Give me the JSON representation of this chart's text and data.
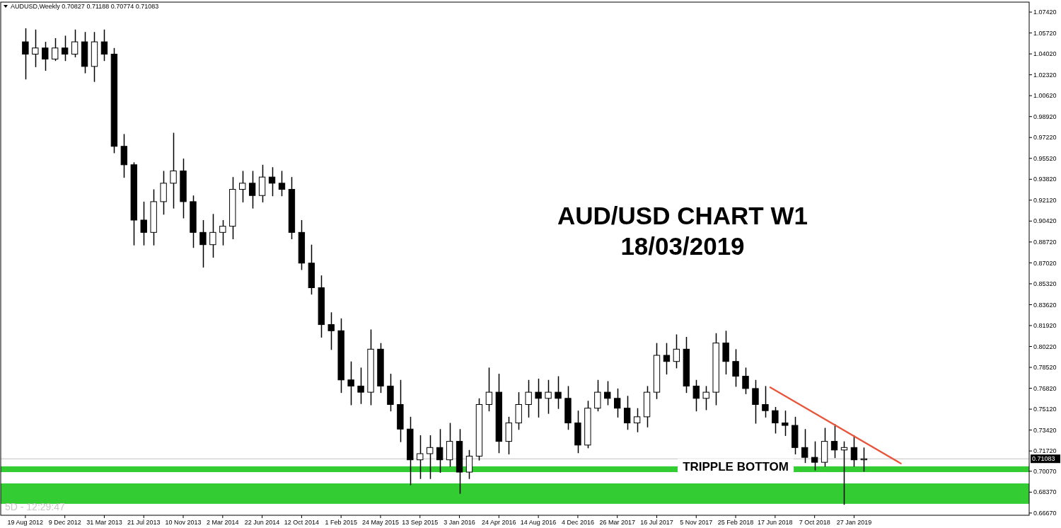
{
  "chart_data": {
    "type": "candlestick",
    "title": "AUD/USD CHART W1",
    "subtitle": "18/03/2019",
    "annotations": [
      "AUDUSD,Weekly  0.70827 0.71188 0.70774 0.71083",
      "5D - 12:29:47",
      {
        "text": "TRIPPLE BOTTOM",
        "x": "2018-02-25",
        "y": 0.7045
      }
    ],
    "x": [
      "2012-08-19",
      "2012-09-16",
      "2012-10-14",
      "2012-11-11",
      "2012-12-09",
      "2013-01-06",
      "2013-02-03",
      "2013-03-03",
      "2013-03-31",
      "2013-04-28",
      "2013-05-26",
      "2013-06-23",
      "2013-07-21",
      "2013-08-18",
      "2013-09-15",
      "2013-10-13",
      "2013-11-10",
      "2013-12-08",
      "2014-01-05",
      "2014-02-02",
      "2014-03-02",
      "2014-03-30",
      "2014-04-27",
      "2014-05-25",
      "2014-06-22",
      "2014-07-20",
      "2014-08-17",
      "2014-09-14",
      "2014-10-12",
      "2014-11-09",
      "2014-12-07",
      "2015-01-04",
      "2015-02-01",
      "2015-03-01",
      "2015-03-29",
      "2015-04-26",
      "2015-05-24",
      "2015-06-21",
      "2015-07-19",
      "2015-08-16",
      "2015-09-13",
      "2015-10-11",
      "2015-11-08",
      "2015-12-06",
      "2016-01-03",
      "2016-01-31",
      "2016-02-28",
      "2016-03-27",
      "2016-04-24",
      "2016-05-22",
      "2016-06-19",
      "2016-07-17",
      "2016-08-14",
      "2016-09-11",
      "2016-10-09",
      "2016-11-06",
      "2016-12-04",
      "2017-01-01",
      "2017-01-29",
      "2017-02-26",
      "2017-03-26",
      "2017-04-23",
      "2017-05-21",
      "2017-06-18",
      "2017-07-16",
      "2017-08-13",
      "2017-09-10",
      "2017-10-08",
      "2017-11-05",
      "2017-12-03",
      "2017-12-31",
      "2018-01-28",
      "2018-02-25",
      "2018-03-25",
      "2018-04-22",
      "2018-05-20",
      "2018-06-17",
      "2018-07-15",
      "2018-08-12",
      "2018-09-09",
      "2018-10-07",
      "2018-11-04",
      "2018-12-02",
      "2018-12-30",
      "2019-01-27",
      "2019-02-24"
    ],
    "ohlc": [
      [
        1.05,
        1.061,
        1.02,
        1.04
      ],
      [
        1.04,
        1.06,
        1.03,
        1.045
      ],
      [
        1.045,
        1.05,
        1.027,
        1.036
      ],
      [
        1.036,
        1.053,
        1.035,
        1.045
      ],
      [
        1.045,
        1.055,
        1.035,
        1.04
      ],
      [
        1.04,
        1.06,
        1.038,
        1.05
      ],
      [
        1.05,
        1.058,
        1.025,
        1.03
      ],
      [
        1.03,
        1.058,
        1.018,
        1.05
      ],
      [
        1.05,
        1.06,
        1.035,
        1.04
      ],
      [
        1.04,
        1.045,
        0.96,
        0.965
      ],
      [
        0.965,
        0.975,
        0.94,
        0.95
      ],
      [
        0.95,
        0.952,
        0.885,
        0.905
      ],
      [
        0.905,
        0.92,
        0.885,
        0.895
      ],
      [
        0.895,
        0.93,
        0.885,
        0.92
      ],
      [
        0.92,
        0.945,
        0.91,
        0.935
      ],
      [
        0.935,
        0.976,
        0.915,
        0.945
      ],
      [
        0.945,
        0.955,
        0.907,
        0.92
      ],
      [
        0.92,
        0.925,
        0.883,
        0.895
      ],
      [
        0.895,
        0.905,
        0.867,
        0.885
      ],
      [
        0.885,
        0.91,
        0.875,
        0.895
      ],
      [
        0.895,
        0.905,
        0.885,
        0.9
      ],
      [
        0.9,
        0.94,
        0.89,
        0.93
      ],
      [
        0.93,
        0.945,
        0.92,
        0.935
      ],
      [
        0.935,
        0.945,
        0.915,
        0.925
      ],
      [
        0.925,
        0.95,
        0.92,
        0.94
      ],
      [
        0.94,
        0.948,
        0.925,
        0.935
      ],
      [
        0.935,
        0.945,
        0.925,
        0.93
      ],
      [
        0.93,
        0.94,
        0.89,
        0.895
      ],
      [
        0.895,
        0.905,
        0.865,
        0.87
      ],
      [
        0.87,
        0.885,
        0.845,
        0.85
      ],
      [
        0.85,
        0.86,
        0.81,
        0.82
      ],
      [
        0.82,
        0.83,
        0.8,
        0.815
      ],
      [
        0.815,
        0.825,
        0.765,
        0.775
      ],
      [
        0.775,
        0.79,
        0.755,
        0.77
      ],
      [
        0.77,
        0.785,
        0.756,
        0.765
      ],
      [
        0.765,
        0.816,
        0.755,
        0.8
      ],
      [
        0.8,
        0.805,
        0.765,
        0.77
      ],
      [
        0.77,
        0.78,
        0.75,
        0.755
      ],
      [
        0.755,
        0.775,
        0.725,
        0.735
      ],
      [
        0.735,
        0.745,
        0.69,
        0.71
      ],
      [
        0.71,
        0.73,
        0.695,
        0.715
      ],
      [
        0.715,
        0.73,
        0.695,
        0.72
      ],
      [
        0.72,
        0.735,
        0.7,
        0.71
      ],
      [
        0.71,
        0.74,
        0.705,
        0.725
      ],
      [
        0.725,
        0.735,
        0.683,
        0.7
      ],
      [
        0.7,
        0.718,
        0.695,
        0.713
      ],
      [
        0.713,
        0.76,
        0.71,
        0.755
      ],
      [
        0.755,
        0.785,
        0.75,
        0.765
      ],
      [
        0.765,
        0.78,
        0.716,
        0.725
      ],
      [
        0.725,
        0.745,
        0.715,
        0.74
      ],
      [
        0.74,
        0.765,
        0.735,
        0.755
      ],
      [
        0.755,
        0.775,
        0.745,
        0.765
      ],
      [
        0.765,
        0.776,
        0.745,
        0.76
      ],
      [
        0.76,
        0.775,
        0.748,
        0.765
      ],
      [
        0.765,
        0.778,
        0.752,
        0.76
      ],
      [
        0.76,
        0.77,
        0.735,
        0.74
      ],
      [
        0.74,
        0.75,
        0.716,
        0.722
      ],
      [
        0.722,
        0.758,
        0.72,
        0.752
      ],
      [
        0.752,
        0.775,
        0.75,
        0.765
      ],
      [
        0.765,
        0.774,
        0.755,
        0.76
      ],
      [
        0.76,
        0.768,
        0.745,
        0.752
      ],
      [
        0.752,
        0.762,
        0.735,
        0.74
      ],
      [
        0.74,
        0.752,
        0.733,
        0.745
      ],
      [
        0.745,
        0.77,
        0.737,
        0.765
      ],
      [
        0.765,
        0.805,
        0.76,
        0.795
      ],
      [
        0.795,
        0.805,
        0.78,
        0.79
      ],
      [
        0.79,
        0.812,
        0.785,
        0.8
      ],
      [
        0.8,
        0.81,
        0.765,
        0.77
      ],
      [
        0.77,
        0.775,
        0.75,
        0.76
      ],
      [
        0.76,
        0.77,
        0.751,
        0.765
      ],
      [
        0.765,
        0.813,
        0.755,
        0.805
      ],
      [
        0.805,
        0.815,
        0.78,
        0.79
      ],
      [
        0.79,
        0.8,
        0.77,
        0.778
      ],
      [
        0.778,
        0.785,
        0.764,
        0.768
      ],
      [
        0.768,
        0.775,
        0.74,
        0.755
      ],
      [
        0.755,
        0.77,
        0.745,
        0.75
      ],
      [
        0.75,
        0.753,
        0.732,
        0.74
      ],
      [
        0.74,
        0.75,
        0.73,
        0.738
      ],
      [
        0.738,
        0.745,
        0.715,
        0.72
      ],
      [
        0.72,
        0.735,
        0.708,
        0.712
      ],
      [
        0.712,
        0.725,
        0.702,
        0.708
      ],
      [
        0.708,
        0.736,
        0.705,
        0.725
      ],
      [
        0.725,
        0.739,
        0.712,
        0.718
      ],
      [
        0.718,
        0.725,
        0.674,
        0.72
      ],
      [
        0.72,
        0.73,
        0.705,
        0.71
      ],
      [
        0.71,
        0.72,
        0.701,
        0.71083
      ]
    ],
    "series": [
      {
        "type": "line",
        "color": "#e8553a",
        "x": [
          "2018-06-03",
          "2019-06-09"
        ],
        "values": [
          0.769,
          0.707
        ]
      }
    ],
    "bands": [
      {
        "axis": "y",
        "from": 0.6742,
        "to": 0.6908,
        "color": "#33cc33"
      },
      {
        "axis": "y",
        "from": 0.7,
        "to": 0.7047,
        "color": "#33cc33"
      }
    ],
    "ref_lines": [
      {
        "axis": "y",
        "value": 0.71083,
        "label": "0.71083",
        "color": "#c0c0c0"
      }
    ],
    "xlim": [
      "2012-06-10",
      "2020-06-07"
    ],
    "ylim": [
      0.6649,
      1.0823
    ],
    "xticks": [
      {
        "value": "2012-08-19",
        "label": "19 Aug 2012"
      },
      {
        "value": "2012-12-09",
        "label": "9 Dec 2012"
      },
      {
        "value": "2013-03-31",
        "label": "31 Mar 2013"
      },
      {
        "value": "2013-07-21",
        "label": "21 Jul 2013"
      },
      {
        "value": "2013-11-10",
        "label": "10 Nov 2013"
      },
      {
        "value": "2014-03-02",
        "label": "2 Mar 2014"
      },
      {
        "value": "2014-06-22",
        "label": "22 Jun 2014"
      },
      {
        "value": "2014-10-12",
        "label": "12 Oct 2014"
      },
      {
        "value": "2015-02-01",
        "label": "1 Feb 2015"
      },
      {
        "value": "2015-05-24",
        "label": "24 May 2015"
      },
      {
        "value": "2015-09-13",
        "label": "13 Sep 2015"
      },
      {
        "value": "2016-01-03",
        "label": "3 Jan 2016"
      },
      {
        "value": "2016-04-24",
        "label": "24 Apr 2016"
      },
      {
        "value": "2016-08-14",
        "label": "14 Aug 2016"
      },
      {
        "value": "2016-12-04",
        "label": "4 Dec 2016"
      },
      {
        "value": "2017-03-26",
        "label": "26 Mar 2017"
      },
      {
        "value": "2017-07-16",
        "label": "16 Jul 2017"
      },
      {
        "value": "2017-11-05",
        "label": "5 Nov 2017"
      },
      {
        "value": "2018-02-25",
        "label": "25 Feb 2018"
      },
      {
        "value": "2018-06-17",
        "label": "17 Jun 2018"
      },
      {
        "value": "2018-10-07",
        "label": "7 Oct 2018"
      },
      {
        "value": "2019-01-27",
        "label": "27 Jan 2019"
      }
    ],
    "yticks": [
      {
        "value": 1.0742,
        "label": "1.07420"
      },
      {
        "value": 1.0572,
        "label": "1.05720"
      },
      {
        "value": 1.0402,
        "label": "1.04020"
      },
      {
        "value": 1.0232,
        "label": "1.02320"
      },
      {
        "value": 1.0062,
        "label": "1.00620"
      },
      {
        "value": 0.9892,
        "label": "0.98920"
      },
      {
        "value": 0.9722,
        "label": "0.97220"
      },
      {
        "value": 0.9552,
        "label": "0.95520"
      },
      {
        "value": 0.9382,
        "label": "0.93820"
      },
      {
        "value": 0.9212,
        "label": "0.92120"
      },
      {
        "value": 0.9042,
        "label": "0.90420"
      },
      {
        "value": 0.8872,
        "label": "0.88720"
      },
      {
        "value": 0.8702,
        "label": "0.87020"
      },
      {
        "value": 0.8532,
        "label": "0.85320"
      },
      {
        "value": 0.8362,
        "label": "0.83620"
      },
      {
        "value": 0.8192,
        "label": "0.81920"
      },
      {
        "value": 0.8022,
        "label": "0.80220"
      },
      {
        "value": 0.7852,
        "label": "0.78520"
      },
      {
        "value": 0.7682,
        "label": "0.76820"
      },
      {
        "value": 0.7512,
        "label": "0.75120"
      },
      {
        "value": 0.7342,
        "label": "0.73420"
      },
      {
        "value": 0.7172,
        "label": "0.71720"
      },
      {
        "value": 0.7007,
        "label": "0.70070"
      },
      {
        "value": 0.6837,
        "label": "0.68370"
      },
      {
        "value": 0.6667,
        "label": "0.66670"
      }
    ]
  }
}
